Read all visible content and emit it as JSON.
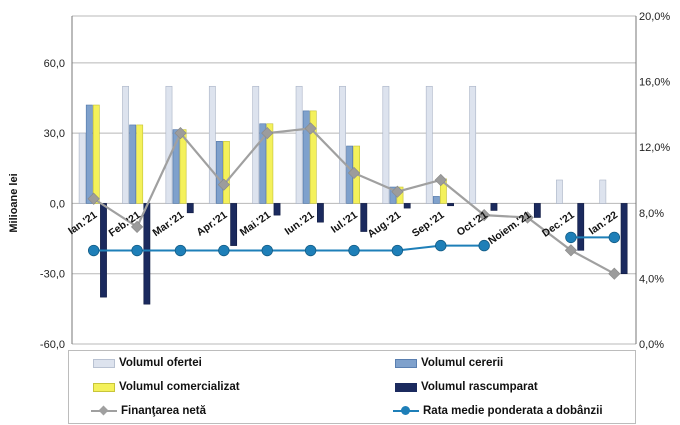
{
  "chart_data": {
    "type": "bar",
    "categories": [
      "Ian.'21",
      "Feb.'21",
      "Mar.'21",
      "Apr.'21",
      "Mai.'21",
      "Iun.'21",
      "Iul.'21",
      "Aug.'21",
      "Sep.'21",
      "Oct.'21",
      "Noiem.'21",
      "Dec.'21",
      "Ian.'22"
    ],
    "ylabel": "Milioane lei",
    "ylim": [
      -60,
      80
    ],
    "y_ticks": [
      "60,0",
      "30,0",
      "0,0",
      "-30,0",
      "-60,0"
    ],
    "y_tick_values": [
      60,
      30,
      0,
      -30,
      -60
    ],
    "y2lim": [
      0,
      20
    ],
    "y2_ticks": [
      "20,0%",
      "16,0%",
      "12,0%",
      "8,0%",
      "4,0%",
      "0,0%"
    ],
    "y2_tick_values": [
      20,
      16,
      12,
      8,
      4,
      0
    ],
    "series": [
      {
        "name": "Volumul ofertei",
        "kind": "bar",
        "color": "#dde3ee",
        "values": [
          30,
          50,
          50,
          50,
          50,
          50,
          50,
          50,
          50,
          50,
          0,
          10,
          10
        ]
      },
      {
        "name": "Volumul cererii",
        "kind": "bar",
        "color": "#7fa1cc",
        "values": [
          42,
          33.5,
          31.5,
          26.5,
          34,
          39.5,
          24.5,
          7,
          3,
          0,
          0,
          0,
          0
        ]
      },
      {
        "name": "Volumul comercializat",
        "kind": "bar",
        "color": "#f4f15b",
        "values": [
          42,
          33.5,
          31.5,
          26.5,
          34,
          39.5,
          24.5,
          7,
          10.5,
          0,
          0,
          0,
          0
        ]
      },
      {
        "name": "Volumul rascumparat",
        "kind": "bar",
        "color": "#1b2a5e",
        "values": [
          -40,
          -43,
          -4,
          -18,
          -5,
          -8,
          -12,
          -2,
          -1,
          -3,
          -6,
          -20,
          -30
        ]
      },
      {
        "name": "Finanţarea netă",
        "kind": "line",
        "axis": "left",
        "color": "#a0a0a0",
        "values": [
          2,
          -10,
          30,
          8,
          30,
          32,
          13,
          5,
          10,
          -5,
          -6,
          -20,
          -30
        ]
      },
      {
        "name": "Rata medie ponderata a dobânzii",
        "kind": "line",
        "axis": "right",
        "color": "#1e7fb8",
        "values": [
          5.7,
          5.7,
          5.7,
          5.7,
          5.7,
          5.7,
          5.7,
          5.7,
          6.0,
          6.0,
          null,
          6.5,
          6.5
        ]
      }
    ],
    "legend_position": "bottom",
    "grid": true
  }
}
